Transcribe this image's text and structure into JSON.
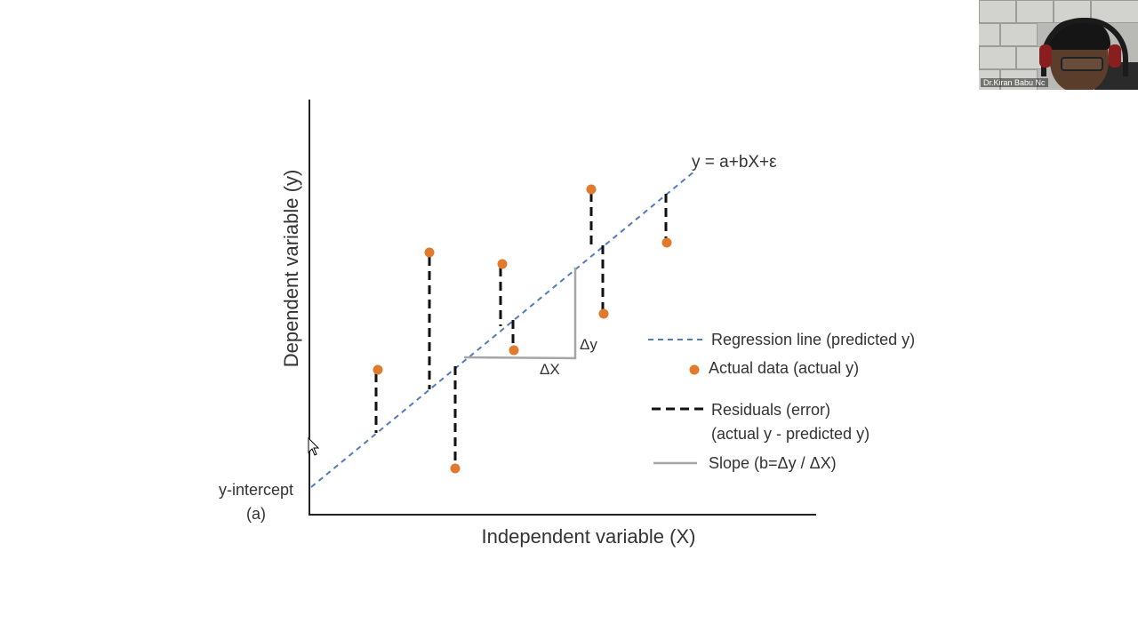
{
  "diagram": {
    "equation": "y = a+bX+ε",
    "y_axis_label": "Dependent variable (y)",
    "x_axis_label": "Independent variable (X)",
    "intercept_label_line1": "y-intercept",
    "intercept_label_line2": "(a)",
    "delta_y": "Δy",
    "delta_x": "ΔX"
  },
  "legend": {
    "regression": "Regression line (predicted y)",
    "actual": "Actual data (actual y)",
    "residuals_line1": "Residuals (error)",
    "residuals_line2": "(actual y - predicted y)",
    "slope": "Slope (b=Δy / ΔX)"
  },
  "colors": {
    "regression_line": "#4f7bbf",
    "data_point": "#e07b2e",
    "residual": "#111111",
    "slope": "#a6a6a6",
    "axis": "#222222",
    "text": "#333333"
  },
  "webcam": {
    "participant_name": "Dr.Kiran Babu Nc"
  }
}
